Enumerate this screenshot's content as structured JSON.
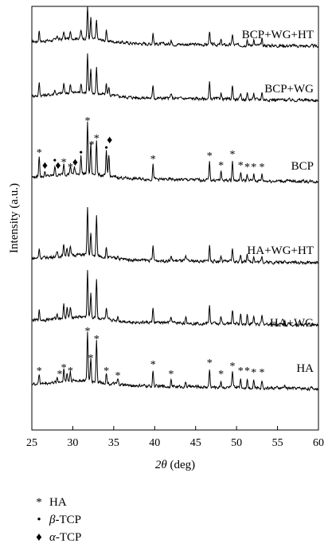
{
  "chart_data": {
    "type": "line",
    "xlabel_symbol": "2θ",
    "xlabel_unit": "(deg)",
    "ylabel": "Intensity (a.u.)",
    "xlim": [
      25,
      60
    ],
    "xticks": [
      25,
      30,
      35,
      40,
      45,
      50,
      55,
      60
    ],
    "series": [
      {
        "name": "BCP+WG+HT",
        "peaks": [
          [
            25.9,
            14
          ],
          [
            28.1,
            6
          ],
          [
            28.9,
            10
          ],
          [
            29.7,
            8
          ],
          [
            31.0,
            10
          ],
          [
            31.8,
            40
          ],
          [
            32.2,
            26
          ],
          [
            32.9,
            24
          ],
          [
            34.1,
            12
          ],
          [
            39.8,
            14
          ],
          [
            42.0,
            6
          ],
          [
            46.7,
            18
          ],
          [
            48.1,
            6
          ],
          [
            49.5,
            14
          ],
          [
            51.3,
            8
          ],
          [
            52.1,
            8
          ],
          [
            53.1,
            8
          ]
        ]
      },
      {
        "name": "BCP+WG",
        "peaks": [
          [
            25.9,
            16
          ],
          [
            27.8,
            6
          ],
          [
            28.9,
            12
          ],
          [
            29.7,
            10
          ],
          [
            31.0,
            12
          ],
          [
            31.8,
            48
          ],
          [
            32.2,
            30
          ],
          [
            32.9,
            32
          ],
          [
            34.1,
            14
          ],
          [
            34.4,
            10
          ],
          [
            39.8,
            16
          ],
          [
            42.0,
            6
          ],
          [
            46.7,
            20
          ],
          [
            48.1,
            8
          ],
          [
            49.5,
            18
          ],
          [
            50.5,
            6
          ],
          [
            51.3,
            8
          ],
          [
            52.1,
            8
          ],
          [
            53.1,
            10
          ]
        ]
      },
      {
        "name": "BCP",
        "peaks": [
          [
            25.9,
            26
          ],
          [
            26.6,
            6
          ],
          [
            27.8,
            12
          ],
          [
            28.9,
            14
          ],
          [
            29.7,
            10
          ],
          [
            30.2,
            8
          ],
          [
            31.0,
            22
          ],
          [
            31.8,
            66
          ],
          [
            32.2,
            38
          ],
          [
            32.9,
            44
          ],
          [
            34.1,
            30
          ],
          [
            34.4,
            28
          ],
          [
            39.8,
            18
          ],
          [
            46.7,
            22
          ],
          [
            48.1,
            10
          ],
          [
            49.5,
            24
          ],
          [
            50.5,
            10
          ],
          [
            51.3,
            8
          ],
          [
            52.1,
            8
          ],
          [
            53.1,
            8
          ]
        ]
      },
      {
        "name": "HA+WG+HT",
        "peaks": [
          [
            25.9,
            12
          ],
          [
            28.1,
            6
          ],
          [
            28.9,
            14
          ],
          [
            29.3,
            10
          ],
          [
            29.7,
            10
          ],
          [
            31.8,
            60
          ],
          [
            32.2,
            28
          ],
          [
            32.9,
            50
          ],
          [
            34.1,
            12
          ],
          [
            35.5,
            5
          ],
          [
            39.8,
            18
          ],
          [
            42.0,
            6
          ],
          [
            43.8,
            5
          ],
          [
            46.7,
            20
          ],
          [
            48.1,
            8
          ],
          [
            49.5,
            16
          ],
          [
            50.5,
            10
          ],
          [
            51.3,
            12
          ],
          [
            52.1,
            8
          ],
          [
            53.1,
            8
          ],
          [
            55.9,
            4
          ]
        ]
      },
      {
        "name": "HA+WG",
        "peaks": [
          [
            25.9,
            12
          ],
          [
            28.1,
            6
          ],
          [
            28.9,
            16
          ],
          [
            29.3,
            12
          ],
          [
            29.7,
            12
          ],
          [
            31.8,
            58
          ],
          [
            32.2,
            30
          ],
          [
            32.9,
            50
          ],
          [
            34.1,
            12
          ],
          [
            35.5,
            6
          ],
          [
            39.8,
            18
          ],
          [
            42.0,
            8
          ],
          [
            43.8,
            6
          ],
          [
            46.7,
            22
          ],
          [
            48.1,
            8
          ],
          [
            49.5,
            18
          ],
          [
            50.5,
            12
          ],
          [
            51.3,
            12
          ],
          [
            52.1,
            10
          ],
          [
            53.1,
            10
          ],
          [
            55.9,
            4
          ]
        ]
      },
      {
        "name": "HA",
        "peaks": [
          [
            25.9,
            12
          ],
          [
            28.1,
            6
          ],
          [
            28.9,
            16
          ],
          [
            29.3,
            10
          ],
          [
            29.7,
            12
          ],
          [
            31.8,
            62
          ],
          [
            32.2,
            28
          ],
          [
            32.9,
            52
          ],
          [
            34.1,
            12
          ],
          [
            35.5,
            6
          ],
          [
            39.8,
            20
          ],
          [
            42.0,
            8
          ],
          [
            43.8,
            6
          ],
          [
            46.7,
            22
          ],
          [
            48.1,
            8
          ],
          [
            49.5,
            18
          ],
          [
            50.5,
            12
          ],
          [
            51.3,
            12
          ],
          [
            52.1,
            10
          ],
          [
            53.1,
            10
          ],
          [
            55.9,
            4
          ]
        ]
      }
    ],
    "annotations": [
      {
        "series": "BCP",
        "symbol": "*",
        "x": 25.9,
        "h": 30
      },
      {
        "series": "BCP",
        "symbol": "♦",
        "x": 26.6,
        "h": 10
      },
      {
        "series": "BCP",
        "symbol": "•",
        "x": 27.8,
        "h": 16
      },
      {
        "series": "BCP",
        "symbol": "♦",
        "x": 28.2,
        "h": 10
      },
      {
        "series": "BCP",
        "symbol": "*",
        "x": 28.9,
        "h": 18
      },
      {
        "series": "BCP",
        "symbol": "*",
        "x": 29.7,
        "h": 12
      },
      {
        "series": "BCP",
        "symbol": "♦",
        "x": 30.3,
        "h": 14
      },
      {
        "series": "BCP",
        "symbol": "•",
        "x": 31.0,
        "h": 26
      },
      {
        "series": "BCP",
        "symbol": "*",
        "x": 31.8,
        "h": 70
      },
      {
        "series": "BCP",
        "symbol": "*",
        "x": 32.3,
        "h": 40
      },
      {
        "series": "BCP",
        "symbol": "*",
        "x": 32.9,
        "h": 48
      },
      {
        "series": "BCP",
        "symbol": "•",
        "x": 34.1,
        "h": 32
      },
      {
        "series": "BCP",
        "symbol": "♦",
        "x": 34.5,
        "h": 42
      },
      {
        "series": "BCP",
        "symbol": "*",
        "x": 39.8,
        "h": 22
      },
      {
        "series": "BCP",
        "symbol": "*",
        "x": 46.7,
        "h": 26
      },
      {
        "series": "BCP",
        "symbol": "*",
        "x": 48.1,
        "h": 14
      },
      {
        "series": "BCP",
        "symbol": "*",
        "x": 49.5,
        "h": 28
      },
      {
        "series": "BCP",
        "symbol": "*",
        "x": 50.5,
        "h": 14
      },
      {
        "series": "BCP",
        "symbol": "*",
        "x": 51.3,
        "h": 12
      },
      {
        "series": "BCP",
        "symbol": "*",
        "x": 52.1,
        "h": 12
      },
      {
        "series": "BCP",
        "symbol": "*",
        "x": 53.1,
        "h": 12
      },
      {
        "series": "HA",
        "symbol": "*",
        "x": 25.9,
        "h": 16
      },
      {
        "series": "HA",
        "symbol": "*",
        "x": 28.4,
        "h": 12
      },
      {
        "series": "HA",
        "symbol": "*",
        "x": 28.9,
        "h": 20
      },
      {
        "series": "HA",
        "symbol": "*",
        "x": 29.7,
        "h": 16
      },
      {
        "series": "HA",
        "symbol": "*",
        "x": 31.8,
        "h": 66
      },
      {
        "series": "HA",
        "symbol": "*",
        "x": 32.2,
        "h": 32
      },
      {
        "series": "HA",
        "symbol": "*",
        "x": 32.9,
        "h": 56
      },
      {
        "series": "HA",
        "symbol": "*",
        "x": 34.1,
        "h": 16
      },
      {
        "series": "HA",
        "symbol": "*",
        "x": 35.5,
        "h": 10
      },
      {
        "series": "HA",
        "symbol": "*",
        "x": 39.8,
        "h": 24
      },
      {
        "series": "HA",
        "symbol": "*",
        "x": 42.0,
        "h": 12
      },
      {
        "series": "HA",
        "symbol": "*",
        "x": 46.7,
        "h": 26
      },
      {
        "series": "HA",
        "symbol": "*",
        "x": 48.1,
        "h": 12
      },
      {
        "series": "HA",
        "symbol": "*",
        "x": 49.5,
        "h": 22
      },
      {
        "series": "HA",
        "symbol": "*",
        "x": 50.5,
        "h": 16
      },
      {
        "series": "HA",
        "symbol": "*",
        "x": 51.3,
        "h": 16
      },
      {
        "series": "HA",
        "symbol": "*",
        "x": 52.1,
        "h": 14
      },
      {
        "series": "HA",
        "symbol": "*",
        "x": 53.1,
        "h": 14
      }
    ],
    "legend": [
      {
        "symbol": "*",
        "phase_prefix": "",
        "phase_name": "HA"
      },
      {
        "symbol": "•",
        "phase_prefix": "β",
        "phase_name": "-TCP"
      },
      {
        "symbol": "♦",
        "phase_prefix": "α",
        "phase_name": "-TCP"
      }
    ],
    "legend_position": "bottom-left",
    "grid": false
  }
}
